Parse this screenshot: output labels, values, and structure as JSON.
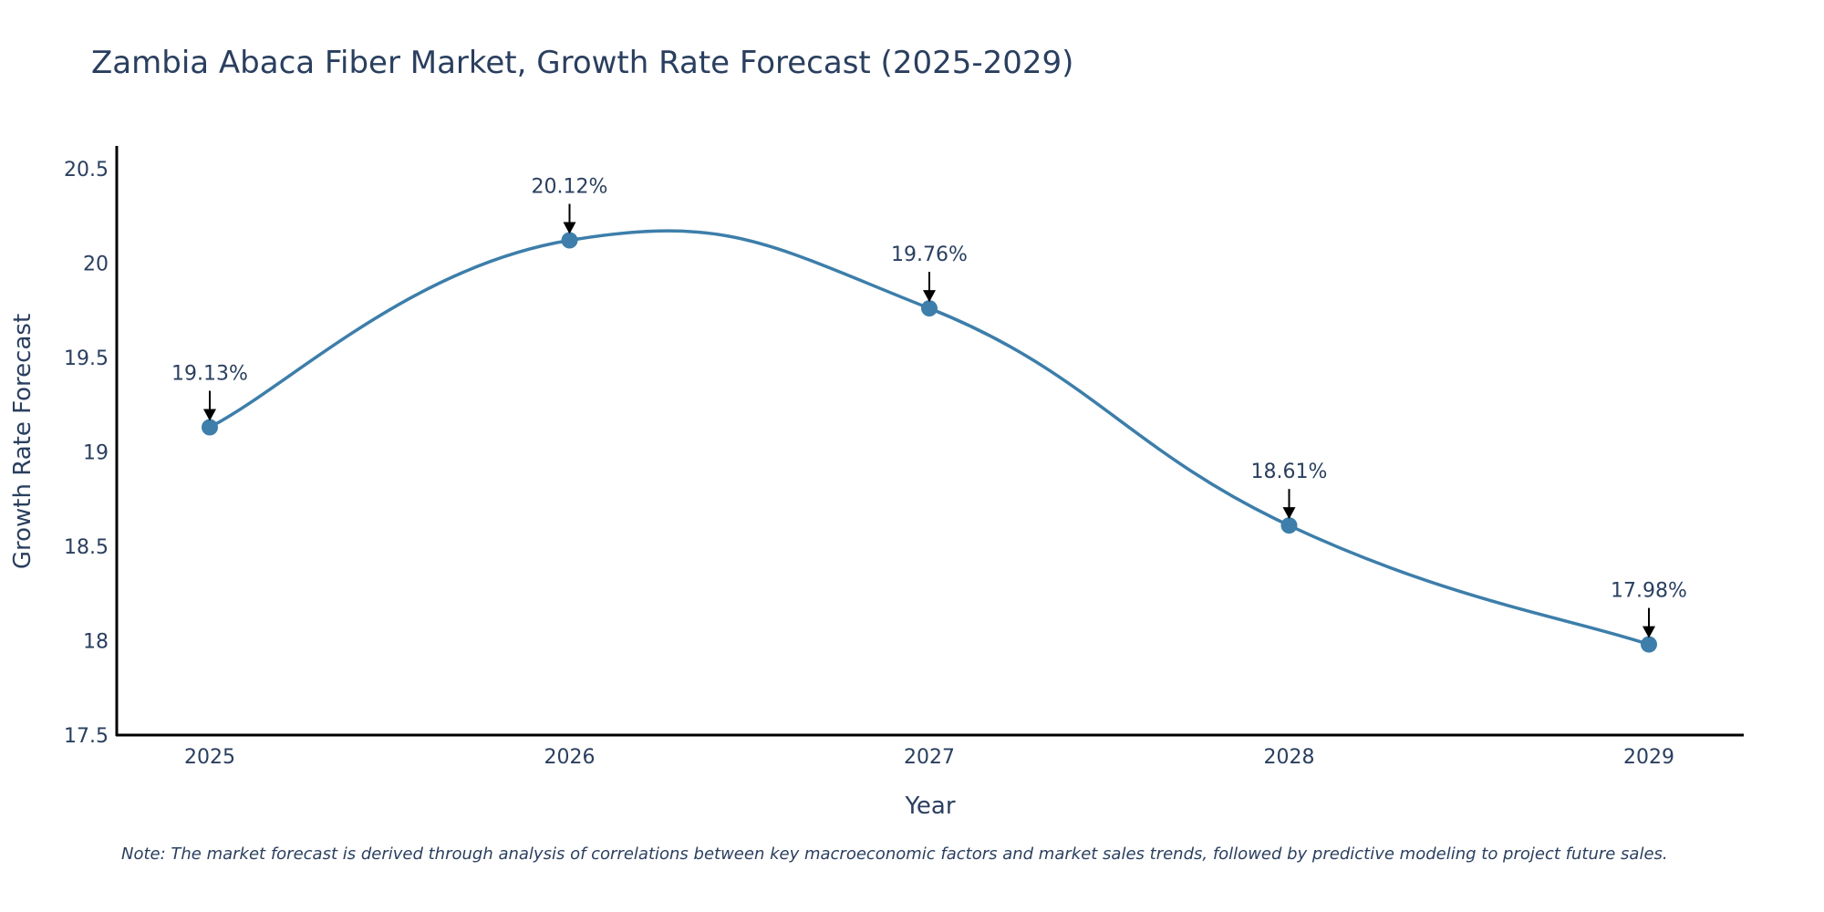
{
  "chart_data": {
    "type": "line",
    "title": "Zambia Abaca Fiber Market, Growth Rate Forecast (2025-2029)",
    "xlabel": "Year",
    "ylabel": "Growth Rate Forecast",
    "categories": [
      "2025",
      "2026",
      "2027",
      "2028",
      "2029"
    ],
    "values": [
      19.13,
      20.12,
      19.76,
      18.61,
      17.98
    ],
    "data_labels": [
      "19.13%",
      "20.12%",
      "19.76%",
      "18.61%",
      "17.98%"
    ],
    "yticks": [
      17.5,
      18,
      18.5,
      19,
      19.5,
      20,
      20.5
    ],
    "ytick_labels": [
      "17.5",
      "18",
      "18.5",
      "19",
      "19.5",
      "20",
      "20.5"
    ],
    "ylim": [
      17.5,
      20.62
    ],
    "line_color": "#3d7eaa",
    "marker_color": "#3d7eaa",
    "grid": false,
    "line_shape": "spline"
  },
  "note": "Note: The market forecast is derived through analysis of correlations between key macroeconomic factors and market sales trends, followed by predictive modeling to project future sales."
}
